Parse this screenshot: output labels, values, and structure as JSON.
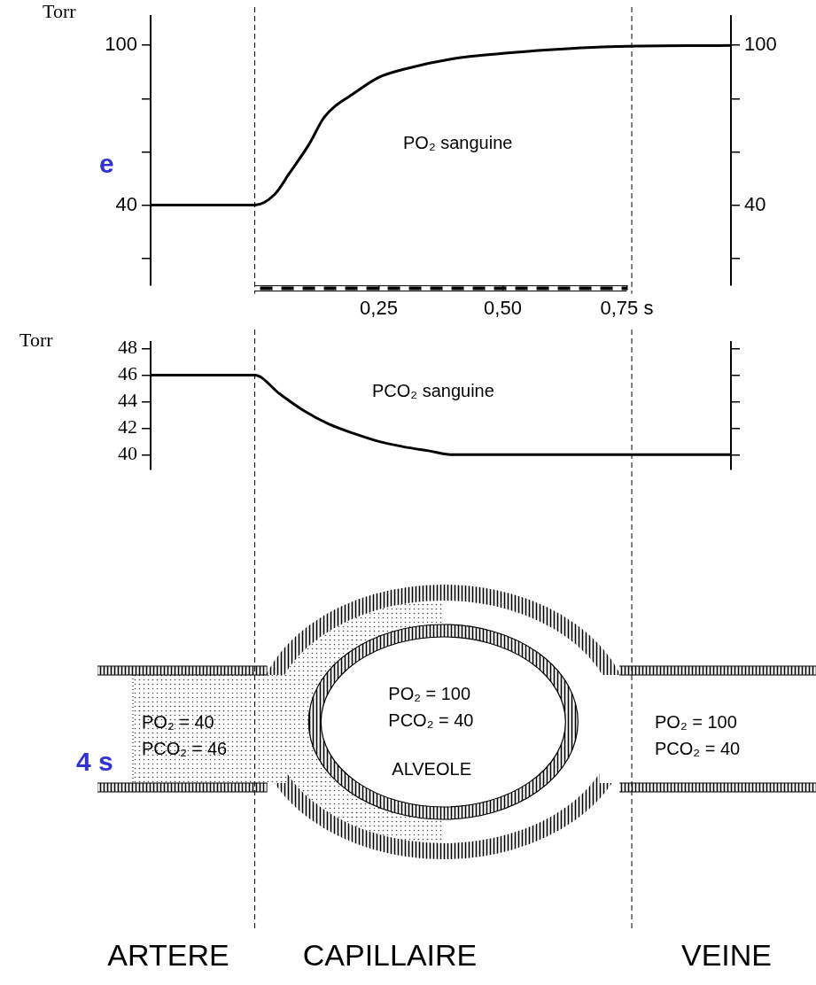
{
  "chart_data": [
    {
      "type": "line",
      "annotation": "PO₂ sanguine",
      "y_label": "Torr",
      "color": "#000000",
      "marker": "none",
      "grid": false,
      "x": [
        -0.21,
        0,
        0.04,
        0.07,
        0.11,
        0.14,
        0.2,
        0.25,
        0.3,
        0.4,
        0.5,
        0.6,
        0.7,
        0.96
      ],
      "values": [
        40,
        40,
        44,
        52,
        63,
        73,
        82,
        88,
        91,
        95,
        97,
        98.4,
        99.4,
        100
      ],
      "xlim": [
        -0.21,
        0.96
      ],
      "xticks": [
        {
          "value": 0.25,
          "label": "0,25"
        },
        {
          "value": 0.5,
          "label": "0,50"
        },
        {
          "value": 0.75,
          "label": "0,75 s"
        }
      ],
      "time_bar": [
        0,
        0.75
      ],
      "boundaries": [
        0,
        0.76
      ],
      "ylim": [
        10,
        111
      ],
      "yticks": [
        40,
        100
      ],
      "yminor": [
        20,
        60,
        80
      ],
      "y2lim": [
        10,
        111
      ],
      "y2ticks": [
        40,
        100
      ],
      "y2minor": [
        20,
        60,
        80
      ]
    },
    {
      "type": "line",
      "annotation": "PCO₂ sanguine",
      "y_label": "Torr",
      "color": "#000000",
      "marker": "none",
      "grid": false,
      "x": [
        -0.21,
        0,
        0.05,
        0.1,
        0.15,
        0.2,
        0.25,
        0.3,
        0.35,
        0.4,
        0.96
      ],
      "values": [
        46,
        46,
        44.6,
        43.3,
        42.3,
        41.6,
        41,
        40.6,
        40.3,
        40,
        40
      ],
      "xlim": [
        -0.21,
        0.96
      ],
      "ylim": [
        38.9,
        48.5
      ],
      "yticks": [
        40,
        42,
        44,
        46,
        48
      ],
      "y2lim": [
        38.9,
        48.5
      ],
      "y2marks": [
        40,
        42,
        44,
        46,
        48
      ]
    }
  ],
  "diagram": {
    "artery": {
      "label": "ARTERE",
      "texts": [
        "PO₂ = 40",
        "PCO₂ = 46"
      ]
    },
    "capillary": {
      "label": "CAPILLAIRE"
    },
    "alveole": {
      "label": "ALVEOLE",
      "texts": [
        "PO₂ = 100",
        "PCO₂ = 40"
      ]
    },
    "vein": {
      "label": "VEINE",
      "texts": [
        "PO₂ = 100",
        "PCO₂ = 40"
      ]
    }
  },
  "side_texts": {
    "color": "#3232d2",
    "texts": [
      "e",
      "4 s"
    ]
  }
}
